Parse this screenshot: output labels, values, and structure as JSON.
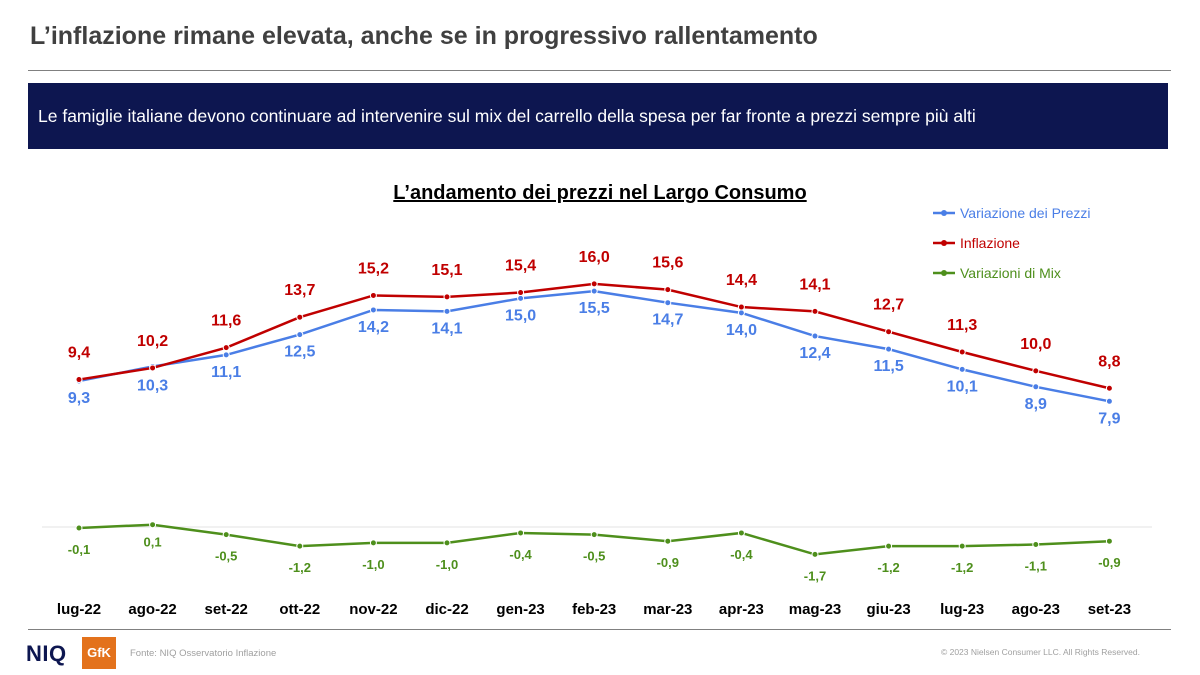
{
  "header": {
    "title": "L’inflazione rimane elevata, anche se in progressivo rallentamento",
    "banner": "Le famiglie italiane devono continuare ad intervenire sul mix del carrello della spesa per far fronte a prezzi  sempre più alti"
  },
  "footer": {
    "logo_niq": "NIQ",
    "logo_gfk": "GfK",
    "source": "Fonte: NIQ Osservatorio Inflazione",
    "copyright": "© 2023 Nielsen Consumer LLC. All Rights Reserved."
  },
  "chart_data": {
    "type": "line",
    "title": "L’andamento dei prezzi nel Largo Consumo",
    "categories": [
      "lug-22",
      "ago-22",
      "set-22",
      "ott-22",
      "nov-22",
      "dic-22",
      "gen-23",
      "feb-23",
      "mar-23",
      "apr-23",
      "mag-23",
      "giu-23",
      "lug-23",
      "ago-23",
      "set-23"
    ],
    "series": [
      {
        "name": "Variazione dei Prezzi",
        "color": "#4a7ee6",
        "values": [
          9.3,
          10.3,
          11.1,
          12.5,
          14.2,
          14.1,
          15.0,
          15.5,
          14.7,
          14.0,
          12.4,
          11.5,
          10.1,
          8.9,
          7.9
        ],
        "labels": [
          "9,3",
          "10,3",
          "11,1",
          "12,5",
          "14,2",
          "14,1",
          "15,0",
          "15,5",
          "14,7",
          "14,0",
          "12,4",
          "11,5",
          "10,1",
          "8,9",
          "7,9"
        ]
      },
      {
        "name": "Inflazione",
        "color": "#c00000",
        "values": [
          9.4,
          10.2,
          11.6,
          13.7,
          15.2,
          15.1,
          15.4,
          16.0,
          15.6,
          14.4,
          14.1,
          12.7,
          11.3,
          10.0,
          8.8
        ],
        "labels": [
          "9,4",
          "10,2",
          "11,6",
          "13,7",
          "15,2",
          "15,1",
          "15,4",
          "16,0",
          "15,6",
          "14,4",
          "14,1",
          "12,7",
          "11,3",
          "10,0",
          "8,8"
        ]
      },
      {
        "name": "Variazioni di Mix",
        "color": "#4e8f1c",
        "values": [
          -0.1,
          0.1,
          -0.5,
          -1.2,
          -1.0,
          -1.0,
          -0.4,
          -0.5,
          -0.9,
          -0.4,
          -1.7,
          -1.2,
          -1.2,
          -1.1,
          -0.9
        ],
        "labels": [
          "-0,1",
          "0,1",
          "-0,5",
          "-1,2",
          "-1,0",
          "-1,0",
          "-0,4",
          "-0,5",
          "-0,9",
          "-0,4",
          "-1,7",
          "-1,2",
          "-1,2",
          "-1,1",
          "-0,9"
        ]
      }
    ],
    "legend": "top-right",
    "grid": false
  }
}
